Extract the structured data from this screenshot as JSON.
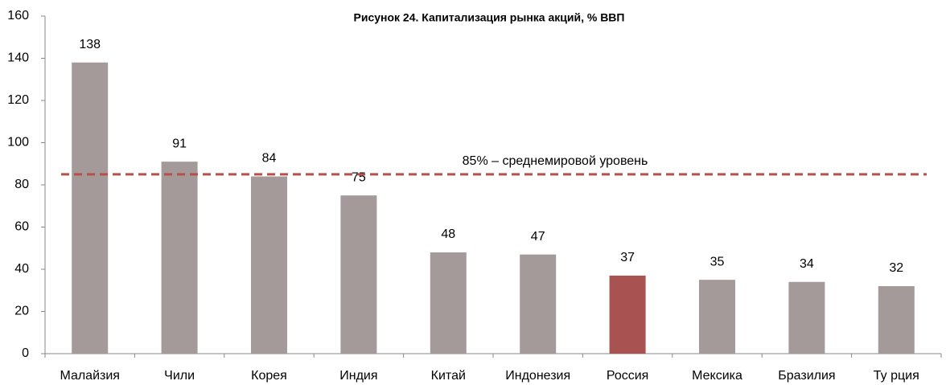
{
  "chart_data": {
    "type": "bar",
    "title": "Рисунок 24. Капитализация рынка акций, % ВВП",
    "categories": [
      "Малайзия",
      "Чили",
      "Корея",
      "Индия",
      "Китай",
      "Индонезия",
      "Россия",
      "Мексика",
      "Бразилия",
      "Ту рция"
    ],
    "values": [
      138,
      91,
      84,
      75,
      48,
      47,
      37,
      35,
      34,
      32
    ],
    "colors": [
      "#a59a9a",
      "#a59a9a",
      "#a59a9a",
      "#a59a9a",
      "#a59a9a",
      "#a59a9a",
      "#a85252",
      "#a59a9a",
      "#a59a9a",
      "#a59a9a"
    ],
    "ylim": [
      0,
      160
    ],
    "yticks": [
      0,
      20,
      40,
      60,
      80,
      100,
      120,
      140,
      160
    ],
    "grid": false,
    "reference_line": {
      "value": 85,
      "label": "85% –  среднемировой уровень",
      "color": "#b5504a"
    }
  }
}
